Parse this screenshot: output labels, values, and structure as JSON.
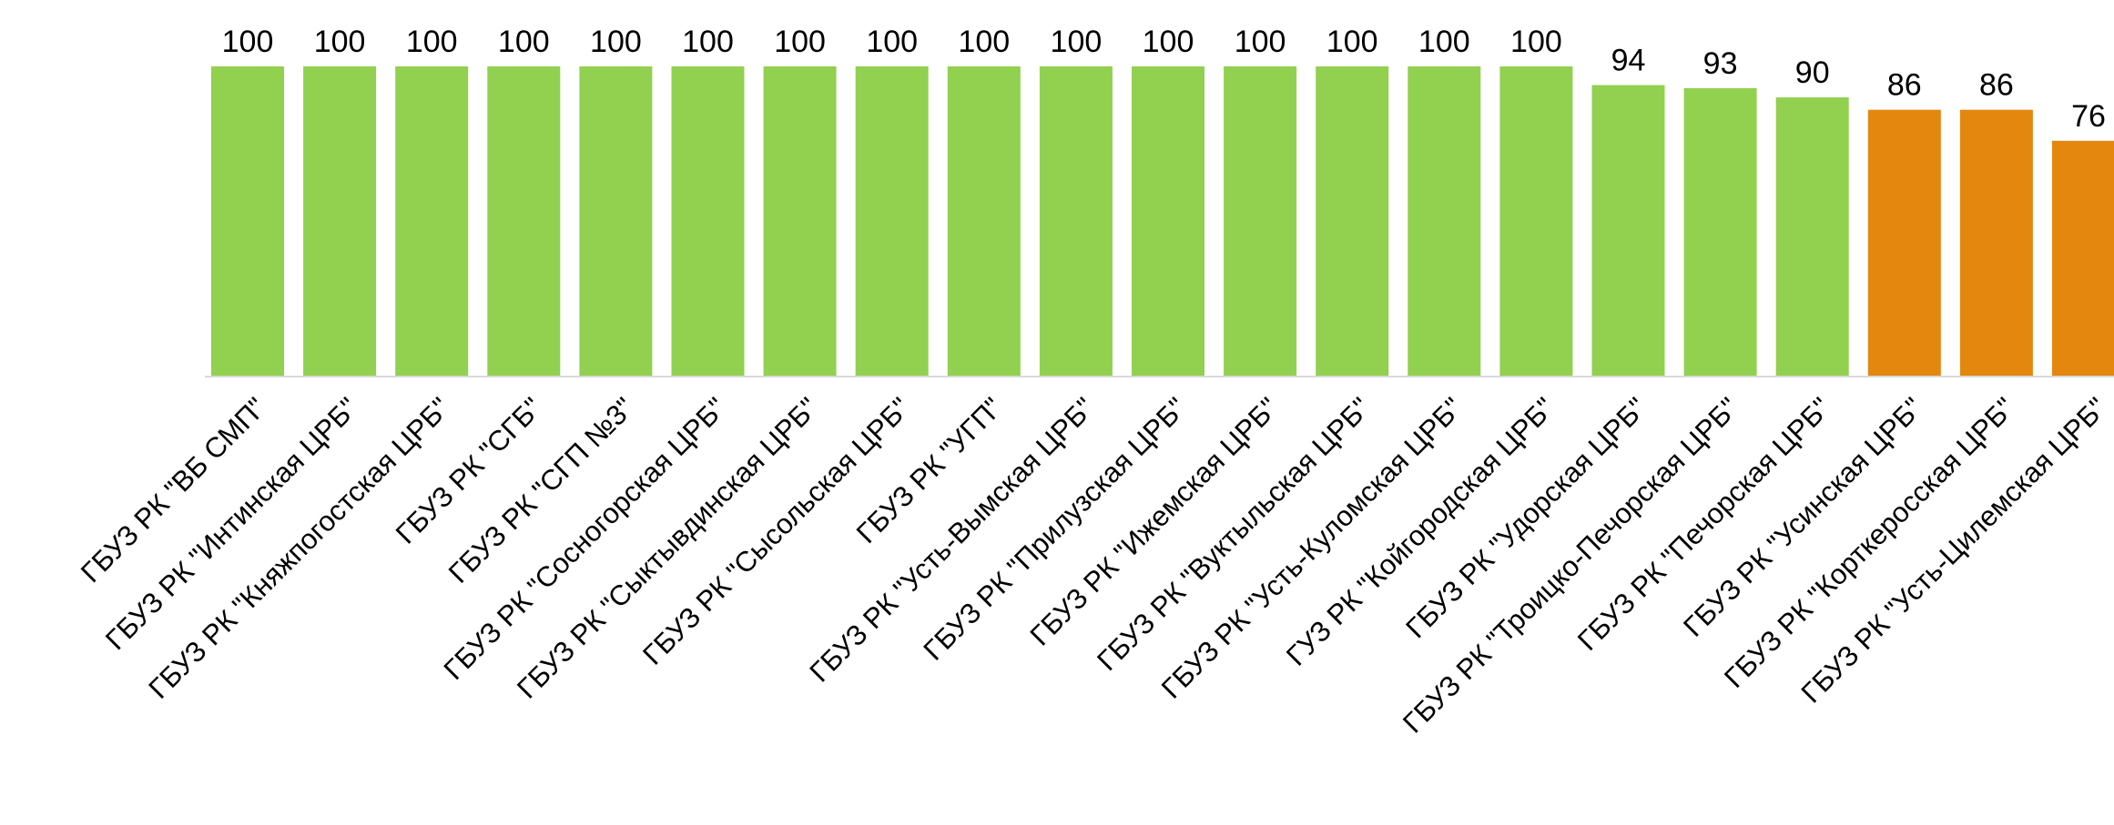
{
  "chart_data": {
    "type": "bar",
    "title": "",
    "xlabel": "",
    "ylabel": "",
    "ylim": [
      0,
      100
    ],
    "grid": false,
    "legend": "none",
    "colors": {
      "high": "#92D050",
      "low": "#E3870F",
      "axis": "#D9D9D9"
    },
    "categories": [
      "ГБУЗ РК \"ВБ СМП\"",
      "ГБУЗ РК \"Интинская ЦРБ\"",
      "ГБУЗ РК \"Княжпогостская ЦРБ\"",
      "ГБУЗ РК \"СГБ\"",
      "ГБУЗ РК \"СГП №3\"",
      "ГБУЗ РК \"Сосногорская ЦРБ\"",
      "ГБУЗ РК \"Сыктывдинская ЦРБ\"",
      "ГБУЗ РК \"Сысольская ЦРБ\"",
      "ГБУЗ РК \"УГП\"",
      "ГБУЗ РК \"Усть-Вымская ЦРБ\"",
      "ГБУЗ РК \"Прилузская ЦРБ\"",
      "ГБУЗ РК \"Ижемская ЦРБ\"",
      "ГБУЗ РК \"Вуктыльская ЦРБ\"",
      "ГБУЗ РК \"Усть-Куломская ЦРБ\"",
      "ГУЗ РК \"Койгородская ЦРБ\"",
      "ГБУЗ РК \"Удорская ЦРБ\"",
      "ГБУЗ РК \"Троицко-Печорская ЦРБ\"",
      "ГБУЗ РК \"Печорская ЦРБ\"",
      "ГБУЗ РК \"Усинская ЦРБ\"",
      "ГБУЗ РК \"Корткеросская ЦРБ\"",
      "ГБУЗ РК \"Усть-Цилемская ЦРБ\""
    ],
    "values": [
      100,
      100,
      100,
      100,
      100,
      100,
      100,
      100,
      100,
      100,
      100,
      100,
      100,
      100,
      100,
      94,
      93,
      90,
      86,
      86,
      76
    ],
    "value_labels": [
      "100",
      "100",
      "100",
      "100",
      "100",
      "100",
      "100",
      "100",
      "100",
      "100",
      "100",
      "100",
      "100",
      "100",
      "100",
      "94",
      "93",
      "90",
      "86",
      "86",
      "76"
    ],
    "bar_colors": [
      "#92D050",
      "#92D050",
      "#92D050",
      "#92D050",
      "#92D050",
      "#92D050",
      "#92D050",
      "#92D050",
      "#92D050",
      "#92D050",
      "#92D050",
      "#92D050",
      "#92D050",
      "#92D050",
      "#92D050",
      "#92D050",
      "#92D050",
      "#92D050",
      "#E3870F",
      "#E3870F",
      "#E3870F"
    ]
  }
}
